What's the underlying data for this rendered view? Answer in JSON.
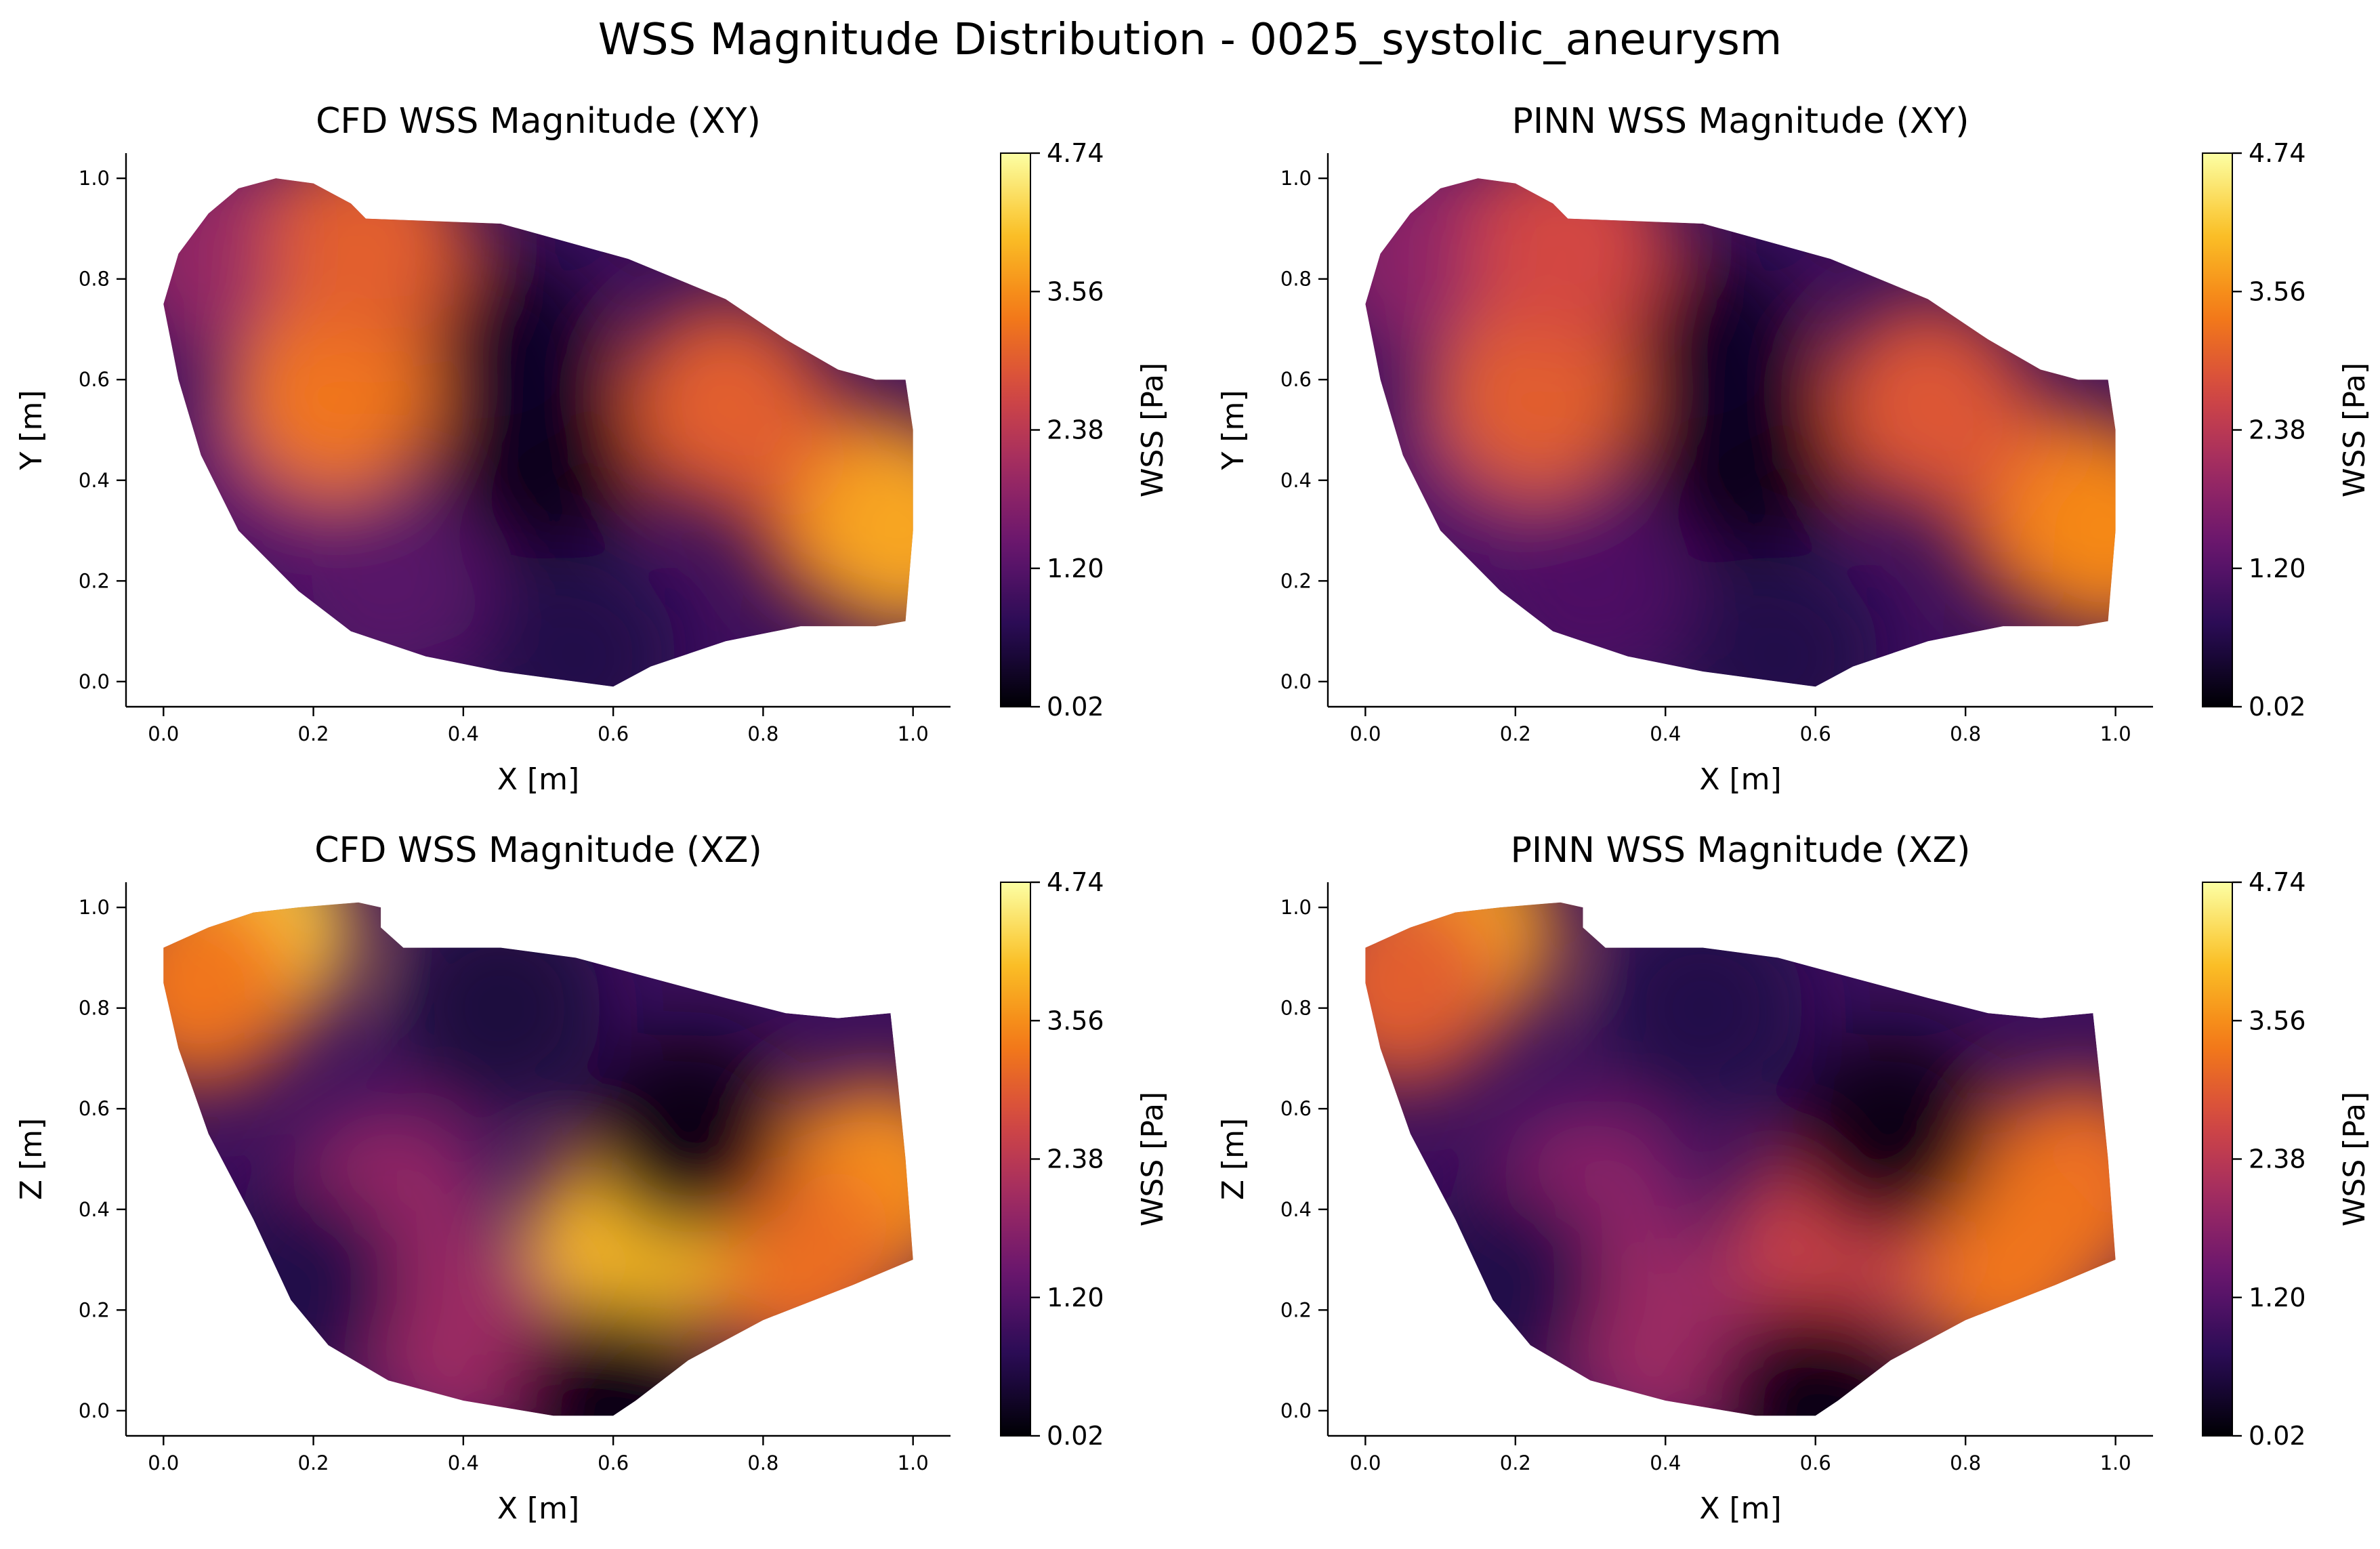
{
  "figure": {
    "title": "WSS Magnitude Distribution - 0025_systolic_aneurysm",
    "colormap": "inferno",
    "colorbar_label": "WSS [Pa]",
    "colorbar_ticks": [
      "0.02",
      "1.20",
      "2.38",
      "3.56",
      "4.74"
    ],
    "colorbar_range": [
      0.02,
      4.74
    ]
  },
  "chart_data": [
    {
      "type": "scatter",
      "title": "CFD WSS Magnitude (XY)",
      "xlabel": "X [m]",
      "ylabel": "Y [m]",
      "xlim": [
        -0.05,
        1.05
      ],
      "ylim": [
        -0.05,
        1.05
      ],
      "xticks": [
        "0.0",
        "0.2",
        "0.4",
        "0.6",
        "0.8",
        "1.0"
      ],
      "yticks": [
        "0.0",
        "0.2",
        "0.4",
        "0.6",
        "0.8",
        "1.0"
      ],
      "color_field": "WSS magnitude",
      "regions": [
        {
          "x": 0.92,
          "y": 0.35,
          "wss": 3.1
        },
        {
          "x": 0.99,
          "y": 0.3,
          "wss": 3.8
        },
        {
          "x": 0.75,
          "y": 0.55,
          "wss": 3.0
        },
        {
          "x": 0.5,
          "y": 0.45,
          "wss": 0.2
        },
        {
          "x": 0.45,
          "y": 0.65,
          "wss": 0.3
        },
        {
          "x": 0.3,
          "y": 0.2,
          "wss": 1.2
        },
        {
          "x": 0.15,
          "y": 0.45,
          "wss": 1.4
        },
        {
          "x": 0.08,
          "y": 0.85,
          "wss": 1.9
        },
        {
          "x": 0.23,
          "y": 0.57,
          "wss": 3.3
        },
        {
          "x": 0.27,
          "y": 0.87,
          "wss": 3.0
        },
        {
          "x": 0.55,
          "y": 0.05,
          "wss": 0.6
        }
      ]
    },
    {
      "type": "scatter",
      "title": "PINN WSS Magnitude (XY)",
      "xlabel": "X [m]",
      "ylabel": "Y [m]",
      "xlim": [
        -0.05,
        1.05
      ],
      "ylim": [
        -0.05,
        1.05
      ],
      "xticks": [
        "0.0",
        "0.2",
        "0.4",
        "0.6",
        "0.8",
        "1.0"
      ],
      "yticks": [
        "0.0",
        "0.2",
        "0.4",
        "0.6",
        "0.8",
        "1.0"
      ],
      "color_field": "WSS magnitude",
      "regions": [
        {
          "x": 0.92,
          "y": 0.35,
          "wss": 3.0
        },
        {
          "x": 0.99,
          "y": 0.3,
          "wss": 3.5
        },
        {
          "x": 0.75,
          "y": 0.55,
          "wss": 2.9
        },
        {
          "x": 0.5,
          "y": 0.45,
          "wss": 0.2
        },
        {
          "x": 0.45,
          "y": 0.65,
          "wss": 0.3
        },
        {
          "x": 0.3,
          "y": 0.2,
          "wss": 1.1
        },
        {
          "x": 0.15,
          "y": 0.45,
          "wss": 1.3
        },
        {
          "x": 0.08,
          "y": 0.85,
          "wss": 1.8
        },
        {
          "x": 0.23,
          "y": 0.57,
          "wss": 3.0
        },
        {
          "x": 0.27,
          "y": 0.87,
          "wss": 2.7
        },
        {
          "x": 0.55,
          "y": 0.05,
          "wss": 0.6
        }
      ]
    },
    {
      "type": "scatter",
      "title": "CFD WSS Magnitude (XZ)",
      "xlabel": "X [m]",
      "ylabel": "Z [m]",
      "xlim": [
        -0.05,
        1.05
      ],
      "ylim": [
        -0.05,
        1.05
      ],
      "xticks": [
        "0.0",
        "0.2",
        "0.4",
        "0.6",
        "0.8",
        "1.0"
      ],
      "yticks": [
        "0.0",
        "0.2",
        "0.4",
        "0.6",
        "0.8",
        "1.0"
      ],
      "color_field": "WSS magnitude",
      "regions": [
        {
          "x": 0.12,
          "y": 0.95,
          "wss": 4.2
        },
        {
          "x": 0.05,
          "y": 0.85,
          "wss": 3.3
        },
        {
          "x": 0.95,
          "y": 0.45,
          "wss": 3.6
        },
        {
          "x": 0.85,
          "y": 0.3,
          "wss": 3.2
        },
        {
          "x": 0.62,
          "y": 0.33,
          "wss": 4.0
        },
        {
          "x": 0.7,
          "y": 0.55,
          "wss": 0.2
        },
        {
          "x": 0.45,
          "y": 0.8,
          "wss": 0.5
        },
        {
          "x": 0.3,
          "y": 0.4,
          "wss": 1.9
        },
        {
          "x": 0.4,
          "y": 0.15,
          "wss": 2.0
        },
        {
          "x": 0.18,
          "y": 0.25,
          "wss": 0.6
        },
        {
          "x": 0.6,
          "y": 0.02,
          "wss": 0.2
        }
      ]
    },
    {
      "type": "scatter",
      "title": "PINN WSS Magnitude (XZ)",
      "xlabel": "X [m]",
      "ylabel": "Z [m]",
      "xlim": [
        -0.05,
        1.05
      ],
      "ylim": [
        -0.05,
        1.05
      ],
      "xticks": [
        "0.0",
        "0.2",
        "0.4",
        "0.6",
        "0.8",
        "1.0"
      ],
      "yticks": [
        "0.0",
        "0.2",
        "0.4",
        "0.6",
        "0.8",
        "1.0"
      ],
      "color_field": "WSS magnitude",
      "regions": [
        {
          "x": 0.12,
          "y": 0.95,
          "wss": 3.8
        },
        {
          "x": 0.05,
          "y": 0.85,
          "wss": 3.0
        },
        {
          "x": 0.95,
          "y": 0.45,
          "wss": 3.2
        },
        {
          "x": 0.85,
          "y": 0.3,
          "wss": 3.3
        },
        {
          "x": 0.62,
          "y": 0.33,
          "wss": 2.6
        },
        {
          "x": 0.7,
          "y": 0.55,
          "wss": 0.2
        },
        {
          "x": 0.45,
          "y": 0.8,
          "wss": 0.6
        },
        {
          "x": 0.3,
          "y": 0.4,
          "wss": 1.8
        },
        {
          "x": 0.4,
          "y": 0.15,
          "wss": 2.0
        },
        {
          "x": 0.18,
          "y": 0.25,
          "wss": 0.6
        },
        {
          "x": 0.6,
          "y": 0.02,
          "wss": 0.2
        }
      ]
    }
  ]
}
